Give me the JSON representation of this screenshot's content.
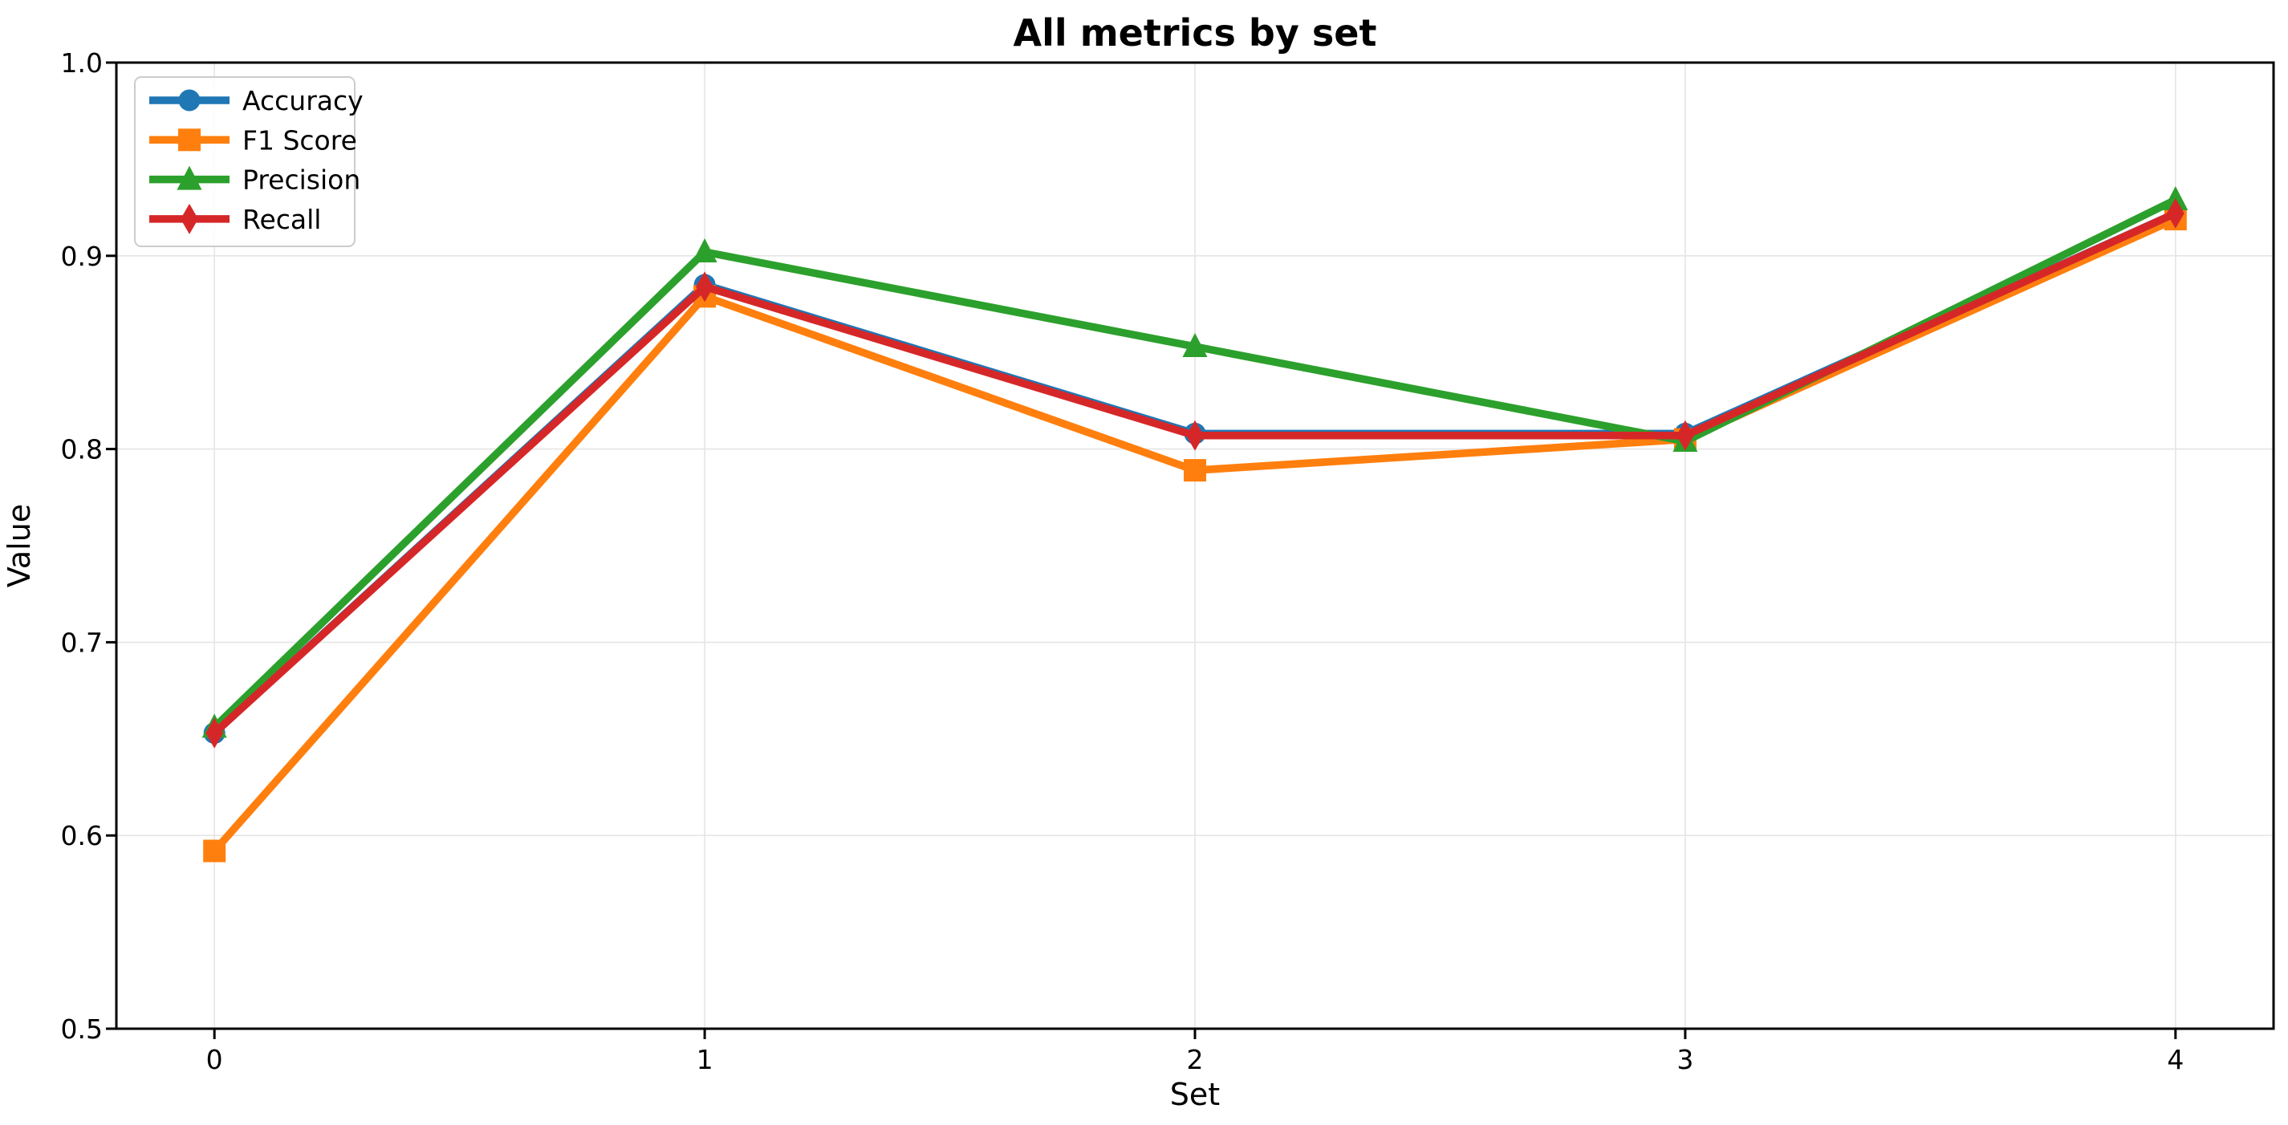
{
  "chart_data": {
    "type": "line",
    "title": "All metrics by set",
    "xlabel": "Set",
    "ylabel": "Value",
    "x": [
      0,
      1,
      2,
      3,
      4
    ],
    "series": [
      {
        "name": "Accuracy",
        "color": "#1f77b4",
        "marker": "circle",
        "values": [
          0.653,
          0.885,
          0.808,
          0.808,
          0.922
        ]
      },
      {
        "name": "F1 Score",
        "color": "#ff7f0e",
        "marker": "square",
        "values": [
          0.592,
          0.879,
          0.789,
          0.805,
          0.919
        ]
      },
      {
        "name": "Precision",
        "color": "#2ca02c",
        "marker": "triangle",
        "values": [
          0.656,
          0.902,
          0.853,
          0.804,
          0.929
        ]
      },
      {
        "name": "Recall",
        "color": "#d62728",
        "marker": "diamond",
        "values": [
          0.653,
          0.884,
          0.807,
          0.807,
          0.922
        ]
      }
    ],
    "xlim": [
      -0.2,
      4.2
    ],
    "ylim": [
      0.5,
      1.0
    ],
    "xticks": [
      0,
      1,
      2,
      3,
      4
    ],
    "xtick_labels": [
      "0",
      "1",
      "2",
      "3",
      "4"
    ],
    "yticks": [
      0.5,
      0.6,
      0.7,
      0.8,
      0.9,
      1.0
    ],
    "ytick_labels": [
      "0.5",
      "0.6",
      "0.7",
      "0.8",
      "0.9",
      "1.0"
    ],
    "grid": true,
    "legend_position": "upper-left",
    "colors": {
      "grid": "#e5e5e5",
      "spine": "#000000",
      "background": "#ffffff",
      "legend_border": "#cccccc",
      "text": "#000000"
    }
  }
}
